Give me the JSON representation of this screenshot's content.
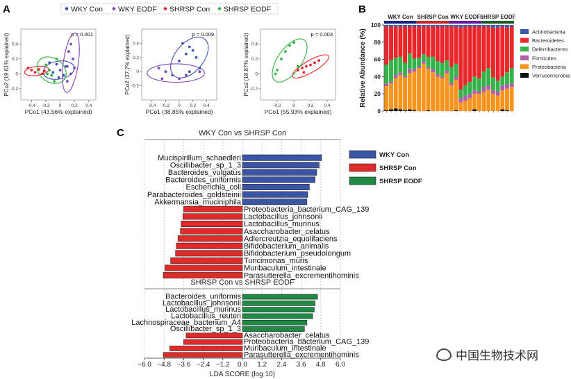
{
  "panel_labels": [
    "A",
    "B",
    "C"
  ],
  "colors": {
    "wky_con": "#3f51b5",
    "wky_eodf": "#7e44b8",
    "shrsp_con": "#e8262b",
    "shrsp_eodf": "#33b340",
    "lda_blue": "#3a55a5",
    "lda_red": "#e12a2a",
    "lda_green": "#1f8a43",
    "actinobacteria": "#3a56a8",
    "bacteroidetes": "#e8262b",
    "deferribacteres": "#34b34a",
    "firmicutes": "#b15ea8",
    "proteobacteria": "#f7941d",
    "verrucomicrobia": "#111111"
  },
  "watermark": "中国生物技术网",
  "chart_data": [
    {
      "type": "scatter",
      "panel": "A",
      "legend": [
        "WKY Con",
        "WKY EODF",
        "SHRSP Con",
        "SHRSP EODF"
      ],
      "plots": [
        {
          "pvalue": "p = 0.001",
          "xlabel": "PCo1 (43.56% explained)",
          "ylabel": "PCo2 (19.61% explained)",
          "xlim": [
            -0.55,
            0.5
          ],
          "ylim": [
            -0.35,
            0.6
          ],
          "xticks": [
            -0.4,
            -0.2,
            0,
            0.2,
            0.4
          ],
          "groups": [
            {
              "name": "WKY Con",
              "points": [
                [
                  -0.15,
                  0.15
                ],
                [
                  -0.05,
                  0.13
                ],
                [
                  0.0,
                  0.05
                ],
                [
                  -0.1,
                  0.02
                ],
                [
                  0.05,
                  -0.02
                ],
                [
                  -0.02,
                  -0.05
                ],
                [
                  0.08,
                  0.1
                ]
              ]
            },
            {
              "name": "WKY EODF",
              "points": [
                [
                  0.15,
                  0.4
                ],
                [
                  0.12,
                  0.3
                ],
                [
                  0.18,
                  0.2
                ],
                [
                  0.1,
                  0.1
                ],
                [
                  0.2,
                  0.08
                ],
                [
                  0.15,
                  0.0
                ],
                [
                  0.1,
                  -0.1
                ]
              ]
            },
            {
              "name": "SHRSP Con",
              "points": [
                [
                  -0.45,
                  0.08
                ],
                [
                  -0.4,
                  0.05
                ],
                [
                  -0.35,
                  0.02
                ],
                [
                  -0.3,
                  0.06
                ],
                [
                  -0.25,
                  0.0
                ],
                [
                  -0.22,
                  0.04
                ]
              ]
            },
            {
              "name": "SHRSP EODF",
              "points": [
                [
                  -0.2,
                  0.12
                ],
                [
                  -0.15,
                  0.05
                ],
                [
                  -0.12,
                  -0.02
                ],
                [
                  -0.08,
                  -0.1
                ],
                [
                  -0.05,
                  0.2
                ],
                [
                  -0.18,
                  0.0
                ]
              ]
            }
          ],
          "ellipses": [
            {
              "group": "WKY Con",
              "cx": -0.02,
              "cy": 0.05,
              "rx": 0.22,
              "ry": 0.12,
              "angle": -10
            },
            {
              "group": "WKY EODF",
              "cx": 0.15,
              "cy": 0.15,
              "rx": 0.42,
              "ry": 0.1,
              "angle": -82
            },
            {
              "group": "SHRSP Con",
              "cx": -0.33,
              "cy": 0.04,
              "rx": 0.17,
              "ry": 0.06,
              "angle": -8
            },
            {
              "group": "SHRSP EODF",
              "cx": -0.12,
              "cy": 0.05,
              "rx": 0.22,
              "ry": 0.16,
              "angle": 35
            }
          ]
        },
        {
          "pvalue": "p = 0.009",
          "xlabel": "PCo1 (38.85% explained)",
          "ylabel": "PCo2 (27.7% explained)",
          "xlim": [
            -0.55,
            0.55
          ],
          "ylim": [
            -0.4,
            0.6
          ],
          "xticks": [
            -0.4,
            -0.2,
            0,
            0.2,
            0.4
          ],
          "groups": [
            {
              "name": "WKY Con",
              "points": [
                [
                  0.05,
                  0.4
                ],
                [
                  0.15,
                  0.35
                ],
                [
                  0.2,
                  0.3
                ],
                [
                  0.1,
                  0.25
                ],
                [
                  0.25,
                  0.2
                ],
                [
                  0.0,
                  0.15
                ],
                [
                  0.3,
                  0.05
                ],
                [
                  0.15,
                  0.0
                ]
              ]
            },
            {
              "name": "WKY EODF",
              "points": [
                [
                  -0.3,
                  0.05
                ],
                [
                  -0.2,
                  0.0
                ],
                [
                  -0.1,
                  -0.05
                ],
                [
                  0.0,
                  -0.1
                ],
                [
                  0.1,
                  -0.05
                ],
                [
                  -0.25,
                  -0.1
                ],
                [
                  0.3,
                  0.0
                ]
              ]
            }
          ],
          "ellipses": [
            {
              "group": "WKY Con",
              "cx": 0.15,
              "cy": 0.2,
              "rx": 0.35,
              "ry": 0.2,
              "angle": -50
            },
            {
              "group": "WKY EODF",
              "cx": -0.05,
              "cy": -0.02,
              "rx": 0.42,
              "ry": 0.13,
              "angle": 0
            }
          ]
        },
        {
          "pvalue": "p = 0.003",
          "xlabel": "PCo1 (55.93% explained)",
          "ylabel": "PCo2 (18.87% explained)",
          "xlim": [
            -0.4,
            0.5
          ],
          "ylim": [
            -0.35,
            0.6
          ],
          "xticks": [
            -0.2,
            0,
            0.2,
            0.4
          ],
          "groups": [
            {
              "name": "SHRSP Con",
              "points": [
                [
                  0.05,
                  0.05
                ],
                [
                  0.1,
                  0.08
                ],
                [
                  0.15,
                  0.1
                ],
                [
                  0.2,
                  0.12
                ],
                [
                  0.25,
                  0.15
                ],
                [
                  0.12,
                  0.02
                ],
                [
                  0.3,
                  0.18
                ]
              ]
            },
            {
              "name": "SHRSP EODF",
              "points": [
                [
                  -0.2,
                  0.05
                ],
                [
                  -0.15,
                  0.2
                ],
                [
                  -0.1,
                  0.3
                ],
                [
                  -0.05,
                  0.38
                ],
                [
                  0.0,
                  0.42
                ],
                [
                  -0.22,
                  0.0
                ],
                [
                  0.05,
                  0.1
                ]
              ]
            }
          ],
          "ellipses": [
            {
              "group": "SHRSP Con",
              "cx": 0.2,
              "cy": 0.1,
              "rx": 0.25,
              "ry": 0.08,
              "angle": -30
            },
            {
              "group": "SHRSP EODF",
              "cx": -0.05,
              "cy": 0.18,
              "rx": 0.3,
              "ry": 0.16,
              "angle": -55
            }
          ]
        }
      ]
    },
    {
      "type": "bar",
      "panel": "B",
      "stacked": true,
      "ylabel": "Relative Abundance (%)",
      "ylim": [
        0,
        100
      ],
      "yticks": [
        0,
        20,
        40,
        60,
        80,
        100
      ],
      "group_labels": [
        "WKY Con",
        "SHRSP Con",
        "WKY EODF",
        "SHRSP EODF"
      ],
      "group_bar_colors": [
        "#1a237e",
        "#c62828",
        "#6a1b9a",
        "#1b5e20"
      ],
      "group_sizes": [
        7,
        7,
        7,
        7
      ],
      "legend": [
        "Actinobacteria",
        "Bacteroidetes",
        "Deferribacteres",
        "Firmicutes",
        "Proteobacteria",
        "Verrucomicrobia"
      ],
      "series": [
        {
          "name": "Verrucomicrobia",
          "values": [
            1,
            2,
            3,
            2,
            1,
            2,
            1,
            0,
            0,
            1,
            0,
            0,
            0,
            0,
            0,
            1,
            0,
            0,
            0,
            2,
            0,
            0,
            0,
            0,
            0,
            2,
            1,
            0
          ]
        },
        {
          "name": "Proteobacteria",
          "values": [
            28,
            30,
            35,
            40,
            38,
            42,
            45,
            50,
            55,
            48,
            45,
            40,
            38,
            44,
            30,
            35,
            10,
            12,
            15,
            18,
            20,
            22,
            25,
            20,
            18,
            22,
            25,
            28
          ]
        },
        {
          "name": "Firmicutes",
          "values": [
            3,
            2,
            4,
            3,
            2,
            5,
            3,
            2,
            3,
            2,
            4,
            3,
            2,
            3,
            3,
            4,
            5,
            6,
            5,
            4,
            3,
            6,
            5,
            4,
            5,
            6,
            5,
            4
          ]
        },
        {
          "name": "Deferribacteres",
          "values": [
            22,
            25,
            20,
            18,
            15,
            18,
            12,
            10,
            8,
            12,
            14,
            15,
            16,
            12,
            18,
            15,
            10,
            12,
            14,
            16,
            15,
            18,
            20,
            15,
            12,
            10,
            14,
            18
          ]
        },
        {
          "name": "Bacteroidetes",
          "values": [
            44,
            39,
            36,
            35,
            42,
            31,
            37,
            36,
            32,
            35,
            35,
            40,
            42,
            39,
            47,
            43,
            72,
            68,
            64,
            58,
            60,
            52,
            48,
            58,
            62,
            58,
            52,
            48
          ]
        },
        {
          "name": "Actinobacteria",
          "values": [
            2,
            2,
            2,
            2,
            2,
            2,
            2,
            2,
            2,
            2,
            2,
            2,
            2,
            2,
            2,
            2,
            3,
            2,
            2,
            2,
            2,
            2,
            2,
            3,
            3,
            2,
            3,
            2
          ]
        }
      ]
    },
    {
      "type": "bar",
      "panel": "C",
      "orientation": "horizontal",
      "xlabel": "LDA SCORE (log 10)",
      "xlim": [
        -6.0,
        6.0
      ],
      "xticks": [
        "−6.0",
        "−4.8",
        "−3.6",
        "−2.4",
        "−1.2",
        "0.0",
        "1.2",
        "2.4",
        "3.6",
        "4.8",
        "6.0"
      ],
      "legend": [
        "WKY Con",
        "SHRSP Con",
        "SHRSP EODF"
      ],
      "sections": [
        {
          "title": "WKY Con vs SHRSP Con",
          "bars": [
            {
              "label": "Mucispirillum_schaedleri",
              "value": 4.85,
              "group": "WKY Con"
            },
            {
              "label": "Oscillibacter_sp_1_3",
              "value": 4.7,
              "group": "WKY Con"
            },
            {
              "label": "Bacteroides_vulgatus",
              "value": 4.55,
              "group": "WKY Con"
            },
            {
              "label": "Bacteroides_uniformis",
              "value": 4.45,
              "group": "WKY Con"
            },
            {
              "label": "Escherichia_coli",
              "value": 4.1,
              "group": "WKY Con"
            },
            {
              "label": "Parabacteroides_goldsteinii",
              "value": 4.0,
              "group": "WKY Con"
            },
            {
              "label": "Akkermansia_muciniphila",
              "value": 3.95,
              "group": "WKY Con"
            },
            {
              "label": "Proteobacteria_bacterium_CAG_139",
              "value": -3.6,
              "group": "SHRSP Con"
            },
            {
              "label": "Lactobacillus_johnsonii",
              "value": -3.65,
              "group": "SHRSP Con"
            },
            {
              "label": "Lactobacillus_murinus",
              "value": -3.75,
              "group": "SHRSP Con"
            },
            {
              "label": "Asaccharobacter_celatus",
              "value": -3.8,
              "group": "SHRSP Con"
            },
            {
              "label": "Adlercreutzia_equolifaciens",
              "value": -3.95,
              "group": "SHRSP Con"
            },
            {
              "label": "Bifidobacterium_animalis",
              "value": -4.05,
              "group": "SHRSP Con"
            },
            {
              "label": "Bifidobacterium_pseudolongum",
              "value": -4.1,
              "group": "SHRSP Con"
            },
            {
              "label": "Turicimonas_muris",
              "value": -4.4,
              "group": "SHRSP Con"
            },
            {
              "label": "Muribaculum_intestinale",
              "value": -4.75,
              "group": "SHRSP Con"
            },
            {
              "label": "Parasutterella_excrementihominis",
              "value": -4.85,
              "group": "SHRSP Con"
            }
          ]
        },
        {
          "title": "SHRSP Con vs SHRSP EODF",
          "bars": [
            {
              "label": "Bacteroides_uniformis",
              "value": 4.6,
              "group": "SHRSP EODF"
            },
            {
              "label": "Lactobacillus_johnsonii",
              "value": 4.45,
              "group": "SHRSP EODF"
            },
            {
              "label": "Lactobacillus_murinus",
              "value": 4.4,
              "group": "SHRSP EODF"
            },
            {
              "label": "Lactobacillus_reuteri",
              "value": 4.3,
              "group": "SHRSP EODF"
            },
            {
              "label": "Lachnospiraceae_bacterium_A4",
              "value": 3.95,
              "group": "SHRSP EODF"
            },
            {
              "label": "Oscillibacter_sp_1_3",
              "value": 3.8,
              "group": "SHRSP EODF"
            },
            {
              "label": "Asaccharobacter_celatus",
              "value": -3.45,
              "group": "SHRSP Con"
            },
            {
              "label": "Proteobacteria_bacterium_CAG_139",
              "value": -3.6,
              "group": "SHRSP Con"
            },
            {
              "label": "Muribaculum_intestinale",
              "value": -4.45,
              "group": "SHRSP Con"
            },
            {
              "label": "Parasutterella_excrementihominis",
              "value": -4.85,
              "group": "SHRSP Con"
            }
          ]
        }
      ]
    }
  ]
}
